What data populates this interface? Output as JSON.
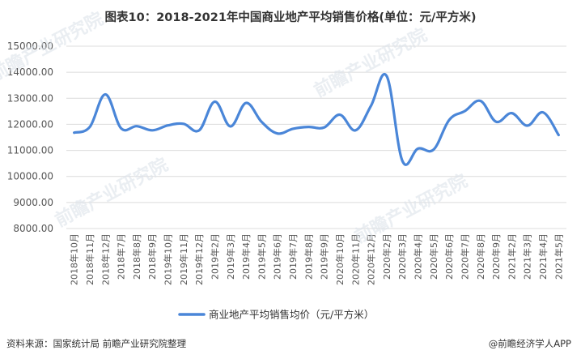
{
  "title": "图表10：2018-2021年中国商业地产平均销售价格(单位：元/平方米)",
  "source": "资料来源：国家统计局 前瞻产业研究院整理",
  "credit": "@前瞻经济学人APP",
  "watermark": "前瞻产业研究院",
  "colors": {
    "line": "#4a86d8",
    "grid": "#dcdcdc",
    "text": "#555555"
  },
  "chart_data": {
    "type": "line",
    "x": [
      "2018年10月",
      "2018年11月",
      "2018年12月",
      "2018年7月",
      "2018年8月",
      "2018年9月",
      "2019年10月",
      "2019年11月",
      "2019年12月",
      "2019年2月",
      "2019年3月",
      "2019年4月",
      "2019年5月",
      "2019年6月",
      "2019年7月",
      "2019年8月",
      "2019年9月",
      "2020年10月",
      "2020年11月",
      "2020年12月",
      "2020年2月",
      "2020年3月",
      "2020年4月",
      "2020年5月",
      "2020年6月",
      "2020年7月",
      "2020年8月",
      "2020年9月",
      "2021年2月",
      "2021年3月",
      "2021年4月",
      "2021年5月"
    ],
    "series": [
      {
        "name": "商业地产平均销售均价（元/平方米）",
        "values": [
          11680,
          11900,
          13150,
          11850,
          11930,
          11770,
          11960,
          12020,
          11770,
          12870,
          11920,
          12820,
          12090,
          11650,
          11830,
          11900,
          11880,
          12370,
          11770,
          12720,
          13850,
          10600,
          11070,
          11030,
          12170,
          12510,
          12900,
          12100,
          12430,
          11950,
          12460,
          11590
        ]
      }
    ],
    "ylim": [
      8000,
      15000
    ],
    "yticks": [
      "15000.00",
      "14000.00",
      "13000.00",
      "12000.00",
      "11000.00",
      "10000.00",
      "9000.00",
      "8000.00"
    ],
    "grid": true,
    "legend": "bottom"
  }
}
